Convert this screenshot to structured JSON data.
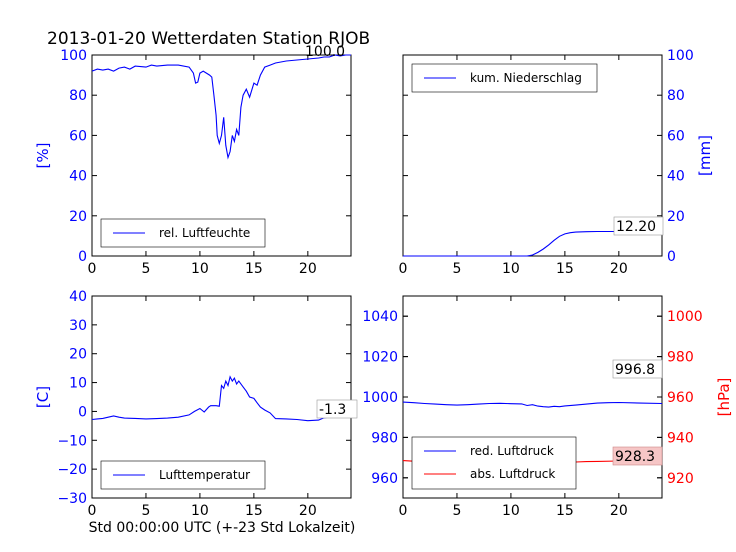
{
  "title": "2013-01-20 Wetterdaten Station RJOB",
  "xlabel": "Std 00:00:00 UTC (+-23 Std Lokalzeit)",
  "colors": {
    "blue": "#0000ff",
    "red": "#ff0000",
    "axis": "#000000"
  },
  "chart_data": [
    {
      "id": "humidity",
      "type": "line",
      "xlim": [
        0,
        24
      ],
      "xticks": [
        0,
        5,
        10,
        15,
        20
      ],
      "ylim": [
        0,
        100
      ],
      "yticks": [
        0,
        20,
        40,
        60,
        80,
        100
      ],
      "ylabel": "[%]",
      "ylabel_side": "left",
      "annotation": "100.0",
      "legend_placement": "lower-left",
      "series": [
        {
          "name": "rel. Luftfeuchte",
          "color": "#0000ff",
          "points": [
            [
              0,
              92
            ],
            [
              0.5,
              93
            ],
            [
              1,
              92.5
            ],
            [
              1.5,
              93
            ],
            [
              2,
              92
            ],
            [
              2.5,
              93.5
            ],
            [
              3,
              94
            ],
            [
              3.5,
              93
            ],
            [
              4,
              94.5
            ],
            [
              5,
              94
            ],
            [
              5.5,
              95
            ],
            [
              6,
              94.5
            ],
            [
              7,
              95
            ],
            [
              8,
              95
            ],
            [
              9,
              94
            ],
            [
              9.4,
              91
            ],
            [
              9.6,
              86
            ],
            [
              9.8,
              86.5
            ],
            [
              10,
              91
            ],
            [
              10.3,
              92
            ],
            [
              10.6,
              91
            ],
            [
              10.9,
              90
            ],
            [
              11.1,
              89
            ],
            [
              11.3,
              80
            ],
            [
              11.5,
              70
            ],
            [
              11.6,
              60
            ],
            [
              11.8,
              56
            ],
            [
              12,
              60
            ],
            [
              12.2,
              69
            ],
            [
              12.4,
              55
            ],
            [
              12.6,
              49
            ],
            [
              12.8,
              52
            ],
            [
              13,
              60
            ],
            [
              13.2,
              57
            ],
            [
              13.4,
              63
            ],
            [
              13.6,
              60
            ],
            [
              13.8,
              74
            ],
            [
              14,
              80
            ],
            [
              14.3,
              83
            ],
            [
              14.6,
              79
            ],
            [
              15,
              86
            ],
            [
              15.3,
              85
            ],
            [
              15.6,
              90
            ],
            [
              16,
              94
            ],
            [
              16.5,
              95
            ],
            [
              17,
              96
            ],
            [
              18,
              97
            ],
            [
              19,
              97.5
            ],
            [
              20,
              98
            ],
            [
              21,
              98.5
            ],
            [
              21.5,
              99
            ],
            [
              22,
              99
            ],
            [
              22.5,
              100
            ],
            [
              23,
              99.5
            ],
            [
              23.5,
              100
            ],
            [
              24,
              100
            ]
          ]
        }
      ]
    },
    {
      "id": "precip",
      "type": "line",
      "xlim": [
        0,
        24
      ],
      "xticks": [
        0,
        5,
        10,
        15,
        20
      ],
      "ylim": [
        0,
        100
      ],
      "yticks": [
        0,
        20,
        40,
        60,
        80,
        100
      ],
      "ylabel": "[mm]",
      "ylabel_side": "right",
      "annotation": "12.20",
      "legend_placement": "upper-left",
      "series": [
        {
          "name": "kum. Niederschlag",
          "color": "#0000ff",
          "points": [
            [
              0,
              0
            ],
            [
              10,
              0
            ],
            [
              11.5,
              0
            ],
            [
              12,
              0.5
            ],
            [
              12.5,
              1.8
            ],
            [
              13,
              3.5
            ],
            [
              13.5,
              5.5
            ],
            [
              14,
              7.8
            ],
            [
              14.5,
              9.8
            ],
            [
              15,
              11
            ],
            [
              15.5,
              11.6
            ],
            [
              16,
              11.9
            ],
            [
              17,
              12.1
            ],
            [
              18,
              12.2
            ],
            [
              20,
              12.2
            ],
            [
              24,
              12.2
            ]
          ]
        }
      ]
    },
    {
      "id": "temperature",
      "type": "line",
      "xlim": [
        0,
        24
      ],
      "xticks": [
        0,
        5,
        10,
        15,
        20
      ],
      "ylim": [
        -30,
        40
      ],
      "yticks": [
        -30,
        -20,
        -10,
        0,
        10,
        20,
        30,
        40
      ],
      "ylabel": "[C]",
      "ylabel_side": "left",
      "annotation": "-1.3",
      "legend_placement": "lower-left",
      "series": [
        {
          "name": "Lufttemperatur",
          "color": "#0000ff",
          "points": [
            [
              0,
              -2.8
            ],
            [
              0.5,
              -2.6
            ],
            [
              1,
              -2.4
            ],
            [
              1.5,
              -2
            ],
            [
              2,
              -1.6
            ],
            [
              2.5,
              -2
            ],
            [
              3,
              -2.3
            ],
            [
              4,
              -2.4
            ],
            [
              5,
              -2.6
            ],
            [
              6,
              -2.5
            ],
            [
              7,
              -2.3
            ],
            [
              8,
              -2
            ],
            [
              9,
              -1.2
            ],
            [
              9.5,
              0
            ],
            [
              10,
              1
            ],
            [
              10.4,
              -0.2
            ],
            [
              10.8,
              1.5
            ],
            [
              11,
              2
            ],
            [
              11.5,
              2
            ],
            [
              11.8,
              1.8
            ],
            [
              12,
              9
            ],
            [
              12.2,
              8
            ],
            [
              12.4,
              10.5
            ],
            [
              12.6,
              9
            ],
            [
              12.8,
              12
            ],
            [
              13,
              10.5
            ],
            [
              13.2,
              11.5
            ],
            [
              13.4,
              9.5
            ],
            [
              13.6,
              10.5
            ],
            [
              14,
              8.5
            ],
            [
              14.3,
              7
            ],
            [
              14.6,
              5
            ],
            [
              15,
              4.5
            ],
            [
              15.3,
              3
            ],
            [
              15.6,
              1.5
            ],
            [
              16,
              0.5
            ],
            [
              16.5,
              -0.5
            ],
            [
              17,
              -2.5
            ],
            [
              18,
              -2.6
            ],
            [
              19,
              -2.8
            ],
            [
              20,
              -3.2
            ],
            [
              21,
              -3
            ],
            [
              21.5,
              -2.2
            ],
            [
              22,
              -2
            ],
            [
              23,
              -1.5
            ],
            [
              24,
              -1.3
            ]
          ]
        }
      ]
    },
    {
      "id": "pressure",
      "type": "line",
      "xlim": [
        0,
        24
      ],
      "xticks": [
        0,
        5,
        10,
        15,
        20
      ],
      "ylim": [
        950,
        1050
      ],
      "yticks": [
        960,
        980,
        1000,
        1020,
        1040
      ],
      "ylim_right": [
        910,
        1010
      ],
      "yticks_right": [
        920,
        940,
        960,
        980,
        1000
      ],
      "ylabel": "",
      "ylabel_right": "[hPa]",
      "annotation": "996.8",
      "annotation_red": "928.3",
      "legend_placement": "lower-left",
      "series": [
        {
          "name": "red. Luftdruck",
          "color": "#0000ff",
          "axis": "left",
          "points": [
            [
              0,
              997.5
            ],
            [
              1,
              997.2
            ],
            [
              2,
              996.8
            ],
            [
              3,
              996.5
            ],
            [
              4,
              996.2
            ],
            [
              5,
              996
            ],
            [
              6,
              996.2
            ],
            [
              7,
              996.5
            ],
            [
              8,
              996.8
            ],
            [
              9,
              996.9
            ],
            [
              10,
              996.7
            ],
            [
              11,
              996.6
            ],
            [
              11.5,
              995.8
            ],
            [
              12,
              996.2
            ],
            [
              12.5,
              995.5
            ],
            [
              13,
              995.2
            ],
            [
              13.5,
              995
            ],
            [
              14,
              995.4
            ],
            [
              14.5,
              995.2
            ],
            [
              15,
              995.6
            ],
            [
              16,
              996
            ],
            [
              17,
              996.5
            ],
            [
              18,
              997
            ],
            [
              19,
              997.2
            ],
            [
              20,
              997.3
            ],
            [
              22,
              997
            ],
            [
              24,
              996.8
            ]
          ]
        },
        {
          "name": "abs. Luftdruck",
          "color": "#ff0000",
          "axis": "right",
          "points": [
            [
              0,
              928.5
            ],
            [
              1,
              928.2
            ],
            [
              2,
              927.8
            ],
            [
              3,
              927.5
            ],
            [
              4,
              927.2
            ],
            [
              5,
              927
            ],
            [
              6,
              927.3
            ],
            [
              7,
              927.8
            ],
            [
              8,
              928
            ],
            [
              9,
              928.3
            ],
            [
              10,
              928.1
            ],
            [
              11,
              928.2
            ],
            [
              11.5,
              927.5
            ],
            [
              12,
              928
            ],
            [
              13,
              927.8
            ],
            [
              13.5,
              927.6
            ],
            [
              14,
              928
            ],
            [
              15,
              927.5
            ],
            [
              16,
              927.8
            ],
            [
              17,
              928
            ],
            [
              18,
              928.1
            ],
            [
              20,
              928.3
            ],
            [
              22,
              928.2
            ],
            [
              24,
              928.3
            ]
          ]
        }
      ]
    }
  ]
}
